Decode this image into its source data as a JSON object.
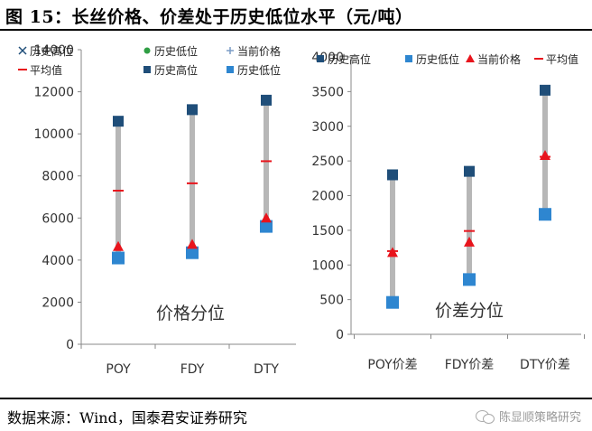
{
  "header": {
    "title": "图 15：长丝价格、价差处于历史低位水平（元/吨）"
  },
  "footer": {
    "source": "数据来源：Wind，国泰君安证券研究",
    "watermark": "陈显顺策略研究"
  },
  "colors": {
    "high": "#1f4e79",
    "low": "#2e86d0",
    "current": "#e8141c",
    "mean": "#e8141c",
    "range_bar": "#b7b7b7"
  },
  "chart_data": [
    {
      "type": "range",
      "annotation": "价格分位",
      "categories": [
        "POY",
        "FDY",
        "DTY"
      ],
      "ylim": [
        0,
        14000
      ],
      "yticks": [
        0,
        2000,
        4000,
        6000,
        8000,
        10000,
        12000,
        14000
      ],
      "legend": [
        "历史高位",
        "历史低位",
        "当前价格",
        "平均值",
        "历史高位",
        "历史低位"
      ],
      "legend_placement": "top",
      "series": [
        {
          "name": "历史高位",
          "values": [
            10600,
            11150,
            11600
          ]
        },
        {
          "name": "历史低位",
          "values": [
            4100,
            4350,
            5600
          ]
        },
        {
          "name": "当前价格",
          "values": [
            4650,
            4750,
            6000
          ]
        },
        {
          "name": "平均值",
          "values": [
            7300,
            7650,
            8700
          ]
        }
      ]
    },
    {
      "type": "range",
      "annotation": "价差分位",
      "categories": [
        "POY价差",
        "FDY价差",
        "DTY价差"
      ],
      "ylim": [
        0,
        4000
      ],
      "yticks": [
        0,
        500,
        1000,
        1500,
        2000,
        2500,
        3000,
        3500,
        4000
      ],
      "legend": [
        "历史高位",
        "历史低位",
        "当前价格",
        "平均值"
      ],
      "legend_placement": "top",
      "series": [
        {
          "name": "历史高位",
          "values": [
            2300,
            2350,
            3520
          ]
        },
        {
          "name": "历史低位",
          "values": [
            460,
            790,
            1730
          ]
        },
        {
          "name": "当前价格",
          "values": [
            1180,
            1330,
            2580
          ]
        },
        {
          "name": "平均值",
          "values": [
            1200,
            1490,
            2560
          ]
        }
      ]
    }
  ]
}
